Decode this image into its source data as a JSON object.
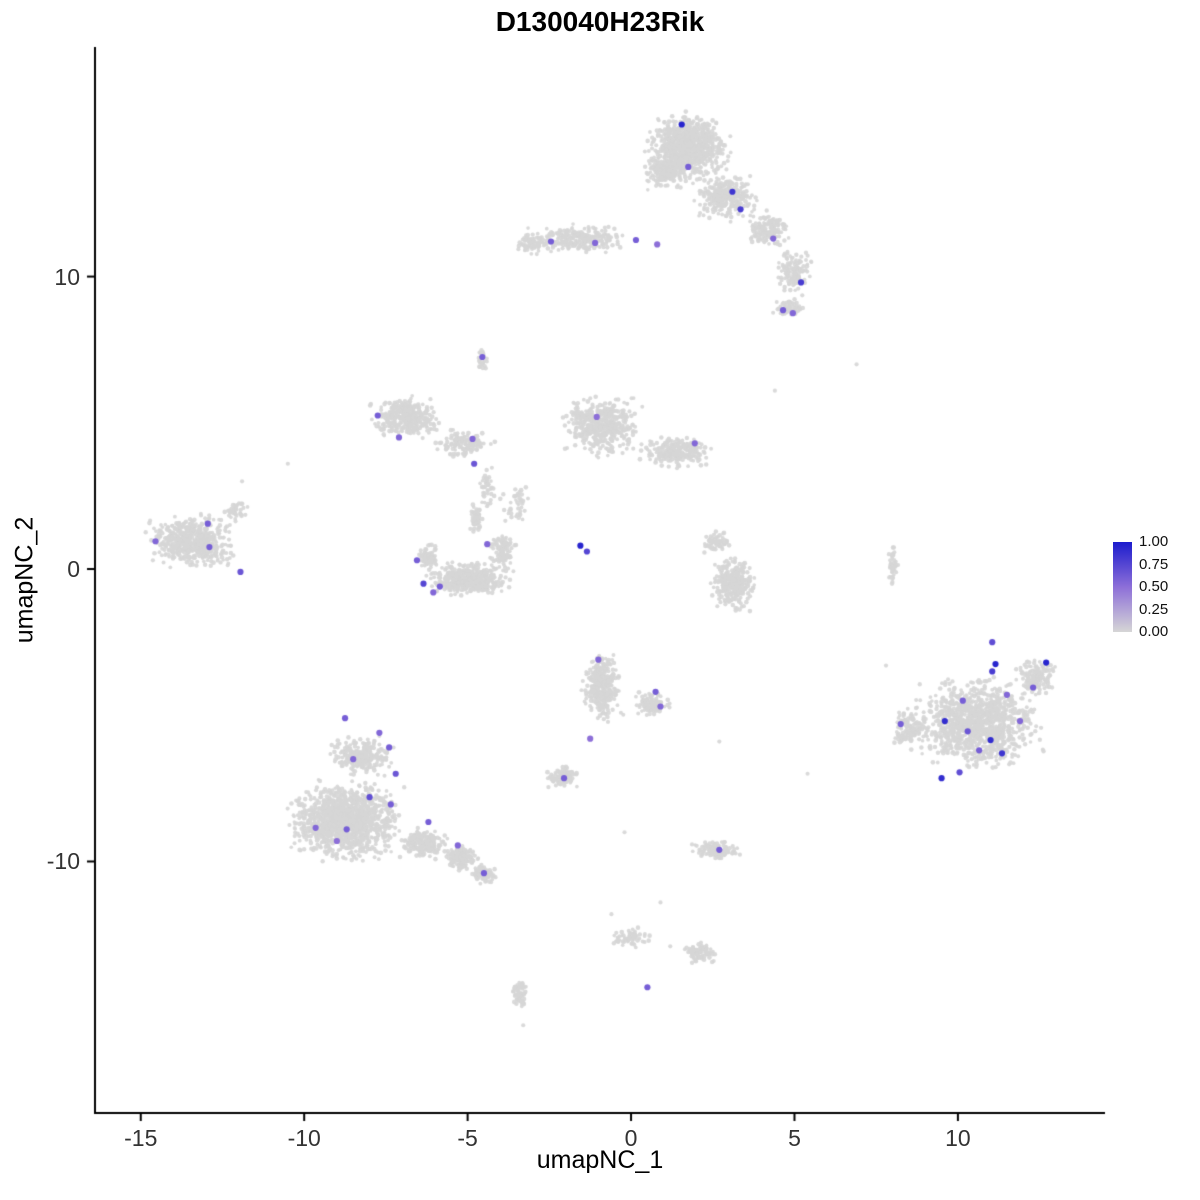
{
  "chart_data": {
    "type": "scatter",
    "title": "D130040H23Rik",
    "xlabel": "umapNC_1",
    "ylabel": "umapNC_2",
    "xlim": [
      -16.4,
      14.5
    ],
    "ylim": [
      -18.6,
      17.85
    ],
    "x_ticks": [
      "-15",
      "-10",
      "-5",
      "0",
      "5",
      "10"
    ],
    "x_tick_values": [
      -15,
      -10,
      -5,
      0,
      5,
      10
    ],
    "y_ticks": [
      "10",
      "0",
      "-10"
    ],
    "y_tick_values": [
      10,
      0,
      -10
    ],
    "grid": false,
    "legend_position": "right",
    "colors": {
      "low": "#d6d6d6",
      "mid": "#8d6fd8",
      "high": "#1c1ccd",
      "axis": "#000000"
    },
    "legend": {
      "ticks": [
        "1.00",
        "0.75",
        "0.50",
        "0.25",
        "0.00"
      ]
    },
    "clusters": [
      {
        "x": 1.7,
        "y": 14.4,
        "rx": 1.25,
        "ry": 1.15,
        "n": 850
      },
      {
        "x": 1.0,
        "y": 13.6,
        "rx": 0.6,
        "ry": 0.6,
        "n": 150
      },
      {
        "x": 2.9,
        "y": 12.7,
        "rx": 0.9,
        "ry": 0.75,
        "n": 280
      },
      {
        "x": 4.2,
        "y": 11.6,
        "rx": 0.7,
        "ry": 0.6,
        "n": 150
      },
      {
        "x": 5.0,
        "y": 10.2,
        "rx": 0.55,
        "ry": 0.8,
        "n": 130
      },
      {
        "x": 4.8,
        "y": 8.9,
        "rx": 0.5,
        "ry": 0.35,
        "n": 60
      },
      {
        "x": -1.6,
        "y": 11.3,
        "rx": 1.5,
        "ry": 0.45,
        "n": 240
      },
      {
        "x": -3.1,
        "y": 11.1,
        "rx": 0.5,
        "ry": 0.35,
        "n": 60
      },
      {
        "x": -4.55,
        "y": 7.2,
        "rx": 0.18,
        "ry": 0.4,
        "n": 25
      },
      {
        "x": -6.9,
        "y": 5.2,
        "rx": 1.05,
        "ry": 0.7,
        "n": 340
      },
      {
        "x": -5.1,
        "y": 4.3,
        "rx": 0.85,
        "ry": 0.5,
        "n": 130
      },
      {
        "x": -4.4,
        "y": 2.8,
        "rx": 0.3,
        "ry": 0.7,
        "n": 45
      },
      {
        "x": -0.9,
        "y": 4.9,
        "rx": 1.15,
        "ry": 1.0,
        "n": 480
      },
      {
        "x": 1.4,
        "y": 4.0,
        "rx": 1.2,
        "ry": 0.55,
        "n": 240
      },
      {
        "x": -3.5,
        "y": 2.3,
        "rx": 0.5,
        "ry": 0.7,
        "n": 40
      },
      {
        "x": -13.4,
        "y": 0.9,
        "rx": 1.3,
        "ry": 0.9,
        "n": 560
      },
      {
        "x": -12.1,
        "y": 2.0,
        "rx": 0.4,
        "ry": 0.4,
        "n": 40
      },
      {
        "x": -5.0,
        "y": -0.35,
        "rx": 1.25,
        "ry": 0.55,
        "n": 460
      },
      {
        "x": -6.2,
        "y": 0.4,
        "rx": 0.35,
        "ry": 0.5,
        "n": 80
      },
      {
        "x": -3.9,
        "y": 0.6,
        "rx": 0.4,
        "ry": 0.6,
        "n": 100
      },
      {
        "x": -4.75,
        "y": 1.7,
        "rx": 0.22,
        "ry": 0.55,
        "n": 55
      },
      {
        "x": 3.1,
        "y": -0.5,
        "rx": 0.65,
        "ry": 0.9,
        "n": 300
      },
      {
        "x": 2.6,
        "y": 0.9,
        "rx": 0.45,
        "ry": 0.4,
        "n": 60
      },
      {
        "x": 8.0,
        "y": 0.2,
        "rx": 0.16,
        "ry": 0.75,
        "n": 40
      },
      {
        "x": -0.9,
        "y": -4.0,
        "rx": 0.6,
        "ry": 1.2,
        "n": 340
      },
      {
        "x": 0.6,
        "y": -4.6,
        "rx": 0.55,
        "ry": 0.45,
        "n": 90
      },
      {
        "x": -2.1,
        "y": -7.1,
        "rx": 0.5,
        "ry": 0.4,
        "n": 90
      },
      {
        "x": -8.7,
        "y": -8.6,
        "rx": 1.7,
        "ry": 1.3,
        "n": 1250
      },
      {
        "x": -8.2,
        "y": -6.4,
        "rx": 1.0,
        "ry": 0.7,
        "n": 260
      },
      {
        "x": -6.3,
        "y": -9.4,
        "rx": 0.75,
        "ry": 0.5,
        "n": 200
      },
      {
        "x": -5.2,
        "y": -9.9,
        "rx": 0.5,
        "ry": 0.4,
        "n": 140
      },
      {
        "x": -4.5,
        "y": -10.4,
        "rx": 0.4,
        "ry": 0.35,
        "n": 90
      },
      {
        "x": 10.6,
        "y": -5.3,
        "rx": 1.9,
        "ry": 1.5,
        "n": 1050
      },
      {
        "x": 12.4,
        "y": -3.7,
        "rx": 0.7,
        "ry": 0.6,
        "n": 140
      },
      {
        "x": 8.5,
        "y": -5.5,
        "rx": 0.6,
        "ry": 0.8,
        "n": 120
      },
      {
        "x": 2.6,
        "y": -9.6,
        "rx": 0.75,
        "ry": 0.35,
        "n": 120
      },
      {
        "x": 0.0,
        "y": -12.6,
        "rx": 0.55,
        "ry": 0.4,
        "n": 60
      },
      {
        "x": 2.1,
        "y": -13.1,
        "rx": 0.55,
        "ry": 0.35,
        "n": 80
      },
      {
        "x": -3.4,
        "y": -14.5,
        "rx": 0.25,
        "ry": 0.6,
        "n": 60
      }
    ],
    "sparse_points": [
      [
        6.9,
        7.0
      ],
      [
        -10.5,
        3.6
      ],
      [
        5.4,
        -7.0
      ],
      [
        2.7,
        -5.9
      ],
      [
        7.8,
        -3.3
      ],
      [
        0.9,
        -11.4
      ],
      [
        -0.6,
        -11.8
      ],
      [
        -3.3,
        -15.6
      ],
      [
        1.2,
        -12.9
      ],
      [
        -11.9,
        3.0
      ],
      [
        -0.2,
        -9.0
      ],
      [
        4.4,
        6.1
      ]
    ],
    "expressing_cells": [
      [
        1.55,
        15.2,
        0.95
      ],
      [
        1.75,
        13.75,
        0.6
      ],
      [
        3.1,
        12.9,
        0.85
      ],
      [
        3.35,
        12.3,
        0.8
      ],
      [
        4.35,
        11.3,
        0.55
      ],
      [
        5.2,
        9.8,
        0.8
      ],
      [
        4.65,
        8.85,
        0.6
      ],
      [
        4.95,
        8.75,
        0.55
      ],
      [
        -2.45,
        11.2,
        0.6
      ],
      [
        -1.1,
        11.15,
        0.55
      ],
      [
        0.15,
        11.25,
        0.6
      ],
      [
        0.8,
        11.1,
        0.5
      ],
      [
        -4.55,
        7.25,
        0.6
      ],
      [
        -7.75,
        5.25,
        0.6
      ],
      [
        -7.1,
        4.5,
        0.55
      ],
      [
        -4.85,
        4.45,
        0.55
      ],
      [
        -4.8,
        3.6,
        0.65
      ],
      [
        -1.05,
        5.2,
        0.5
      ],
      [
        1.95,
        4.3,
        0.55
      ],
      [
        -12.95,
        1.55,
        0.6
      ],
      [
        -14.55,
        0.95,
        0.55
      ],
      [
        -12.9,
        0.75,
        0.6
      ],
      [
        -11.95,
        -0.1,
        0.65
      ],
      [
        -6.55,
        0.3,
        0.6
      ],
      [
        -6.35,
        -0.5,
        0.75
      ],
      [
        -5.85,
        -0.6,
        0.6
      ],
      [
        -6.05,
        -0.8,
        0.55
      ],
      [
        -4.4,
        0.85,
        0.55
      ],
      [
        -1.55,
        0.8,
        0.95
      ],
      [
        -1.35,
        0.6,
        0.75
      ],
      [
        -1.0,
        -3.1,
        0.55
      ],
      [
        0.75,
        -4.2,
        0.6
      ],
      [
        0.9,
        -4.7,
        0.55
      ],
      [
        -1.25,
        -5.8,
        0.5
      ],
      [
        -2.05,
        -7.15,
        0.6
      ],
      [
        -8.75,
        -5.1,
        0.6
      ],
      [
        -7.7,
        -5.6,
        0.55
      ],
      [
        -7.4,
        -6.1,
        0.6
      ],
      [
        -8.5,
        -6.5,
        0.55
      ],
      [
        -7.2,
        -7.0,
        0.65
      ],
      [
        -8.0,
        -7.8,
        0.7
      ],
      [
        -7.35,
        -8.05,
        0.6
      ],
      [
        -9.65,
        -8.85,
        0.55
      ],
      [
        -8.7,
        -8.9,
        0.6
      ],
      [
        -6.2,
        -8.65,
        0.6
      ],
      [
        -5.3,
        -9.45,
        0.55
      ],
      [
        -4.5,
        -10.4,
        0.6
      ],
      [
        -9.0,
        -9.3,
        0.5
      ],
      [
        11.05,
        -2.5,
        0.7
      ],
      [
        11.15,
        -3.25,
        0.95
      ],
      [
        12.7,
        -3.2,
        0.95
      ],
      [
        11.05,
        -3.5,
        0.8
      ],
      [
        12.3,
        -4.05,
        0.6
      ],
      [
        11.5,
        -4.3,
        0.55
      ],
      [
        10.15,
        -4.5,
        0.6
      ],
      [
        9.6,
        -5.2,
        0.9
      ],
      [
        10.3,
        -5.55,
        0.65
      ],
      [
        11.0,
        -5.85,
        0.9
      ],
      [
        10.65,
        -6.2,
        0.6
      ],
      [
        11.35,
        -6.3,
        0.85
      ],
      [
        9.5,
        -7.15,
        0.9
      ],
      [
        8.25,
        -5.3,
        0.6
      ],
      [
        10.05,
        -6.95,
        0.7
      ],
      [
        11.9,
        -5.2,
        0.55
      ],
      [
        2.7,
        -9.6,
        0.6
      ],
      [
        0.5,
        -14.3,
        0.6
      ]
    ]
  }
}
